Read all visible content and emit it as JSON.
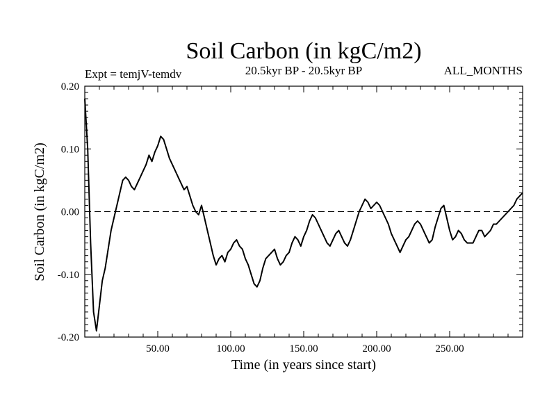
{
  "chart_data": {
    "type": "line",
    "title": "Soil Carbon (in kgC/m2)",
    "subtitle_left": "Expt = temjV-temdv",
    "subtitle_center": "20.5kyr BP - 20.5kyr BP",
    "subtitle_right": "ALL_MONTHS",
    "xlabel": "Time (in years since start)",
    "ylabel": "Soil Carbon (in kgC/m2)",
    "xlim": [
      0,
      300
    ],
    "ylim": [
      -0.2,
      0.2
    ],
    "x_ticks": [
      50,
      100,
      150,
      200,
      250
    ],
    "x_tick_labels": [
      "50.00",
      "100.00",
      "150.00",
      "200.00",
      "250.00"
    ],
    "y_ticks": [
      0.2,
      0.1,
      0.0,
      -0.1,
      -0.2
    ],
    "y_tick_labels": [
      "0.20",
      "0.10",
      "0.00",
      "-0.10",
      "-0.20"
    ],
    "reference_line": 0.0,
    "series": [
      {
        "name": "Soil Carbon",
        "x": [
          0,
          2,
          4,
          6,
          8,
          10,
          12,
          14,
          16,
          18,
          20,
          22,
          24,
          26,
          28,
          30,
          32,
          34,
          36,
          38,
          40,
          42,
          44,
          46,
          48,
          50,
          52,
          54,
          56,
          58,
          60,
          62,
          64,
          66,
          68,
          70,
          72,
          74,
          76,
          78,
          80,
          82,
          84,
          86,
          88,
          90,
          92,
          94,
          96,
          98,
          100,
          102,
          104,
          106,
          108,
          110,
          112,
          114,
          116,
          118,
          120,
          122,
          124,
          126,
          128,
          130,
          132,
          134,
          136,
          138,
          140,
          142,
          144,
          146,
          148,
          150,
          152,
          154,
          156,
          158,
          160,
          162,
          164,
          166,
          168,
          170,
          172,
          174,
          176,
          178,
          180,
          182,
          184,
          186,
          188,
          190,
          192,
          194,
          196,
          198,
          200,
          202,
          204,
          206,
          208,
          210,
          212,
          214,
          216,
          218,
          220,
          222,
          224,
          226,
          228,
          230,
          232,
          234,
          236,
          238,
          240,
          242,
          244,
          246,
          248,
          250,
          252,
          254,
          256,
          258,
          260,
          262,
          264,
          266,
          268,
          270,
          272,
          274,
          276,
          278,
          280,
          282,
          284,
          286,
          288,
          290,
          292,
          294,
          296,
          298,
          300
        ],
        "values": [
          0.18,
          0.1,
          -0.05,
          -0.16,
          -0.19,
          -0.15,
          -0.11,
          -0.09,
          -0.06,
          -0.03,
          -0.01,
          0.01,
          0.03,
          0.05,
          0.055,
          0.05,
          0.04,
          0.035,
          0.045,
          0.055,
          0.065,
          0.075,
          0.09,
          0.08,
          0.095,
          0.105,
          0.12,
          0.115,
          0.1,
          0.085,
          0.075,
          0.065,
          0.055,
          0.045,
          0.035,
          0.04,
          0.025,
          0.01,
          0.0,
          -0.005,
          0.01,
          -0.01,
          -0.03,
          -0.05,
          -0.07,
          -0.085,
          -0.075,
          -0.07,
          -0.08,
          -0.065,
          -0.06,
          -0.05,
          -0.045,
          -0.055,
          -0.06,
          -0.075,
          -0.085,
          -0.1,
          -0.115,
          -0.12,
          -0.11,
          -0.09,
          -0.075,
          -0.07,
          -0.065,
          -0.06,
          -0.075,
          -0.085,
          -0.08,
          -0.07,
          -0.065,
          -0.05,
          -0.04,
          -0.045,
          -0.055,
          -0.04,
          -0.03,
          -0.015,
          -0.005,
          -0.01,
          -0.02,
          -0.03,
          -0.04,
          -0.05,
          -0.055,
          -0.045,
          -0.035,
          -0.03,
          -0.04,
          -0.05,
          -0.055,
          -0.045,
          -0.03,
          -0.015,
          0.0,
          0.01,
          0.02,
          0.015,
          0.005,
          0.01,
          0.015,
          0.01,
          0.0,
          -0.01,
          -0.02,
          -0.035,
          -0.045,
          -0.055,
          -0.065,
          -0.055,
          -0.045,
          -0.04,
          -0.03,
          -0.02,
          -0.015,
          -0.02,
          -0.03,
          -0.04,
          -0.05,
          -0.045,
          -0.025,
          -0.01,
          0.005,
          0.01,
          -0.01,
          -0.03,
          -0.045,
          -0.04,
          -0.03,
          -0.035,
          -0.045,
          -0.05,
          -0.05,
          -0.05,
          -0.04,
          -0.03,
          -0.03,
          -0.04,
          -0.035,
          -0.03,
          -0.02,
          -0.02,
          -0.015,
          -0.01,
          -0.005,
          0.0,
          0.005,
          0.01,
          0.02,
          0.025,
          0.03
        ]
      }
    ]
  }
}
